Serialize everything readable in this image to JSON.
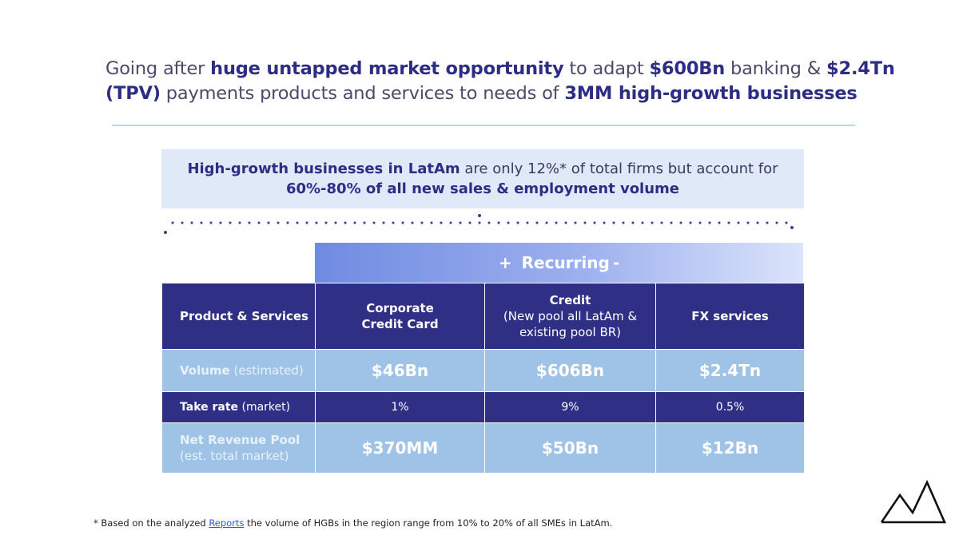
{
  "headline": {
    "p1": "Going after ",
    "b1": "huge untapped market opportunity",
    "p2": " to adapt ",
    "b2": "$600Bn",
    "p3": " banking & ",
    "b3": "$2.4Tn (TPV)",
    "p4": " payments products and services to needs of ",
    "b4": "3MM high-growth businesses"
  },
  "callout": {
    "b1": "High-growth businesses in LatAm",
    "p1": " are only 12%* of total firms but account for ",
    "b2": "60%-80% of all new sales & employment volume"
  },
  "recurring": {
    "plus": "+",
    "label": "Recurring",
    "minus": "-"
  },
  "table": {
    "header": {
      "label": "Product & Services",
      "col1": "Corporate Credit Card",
      "col2_title": "Credit",
      "col2_sub": "(New pool all LatAm & existing pool BR)",
      "col3": "FX services"
    },
    "volume": {
      "label": "Volume",
      "label_sub": "(estimated)",
      "values": [
        "$46Bn",
        "$606Bn",
        "$2.4Tn"
      ]
    },
    "take_rate": {
      "label": "Take rate",
      "label_sub": "(market)",
      "values": [
        "1%",
        "9%",
        "0.5%"
      ]
    },
    "revenue": {
      "label": "Net Revenue Pool",
      "label_sub": "(est. total market)",
      "values": [
        "$370MM",
        "$50Bn",
        "$12Bn"
      ]
    }
  },
  "footnote": {
    "p1": "* Based on the analyzed ",
    "link": "Reports",
    "p2": " the volume of HGBs in the region range from 10% to 20% of all SMEs in LatAm."
  },
  "colors": {
    "navy": "#2f2f86",
    "light_blue": "#9fc3e6",
    "callout_bg": "#dfe9f8",
    "rule": "#b9dbe0"
  },
  "icons": {
    "logo": "mountain-logo-icon"
  }
}
